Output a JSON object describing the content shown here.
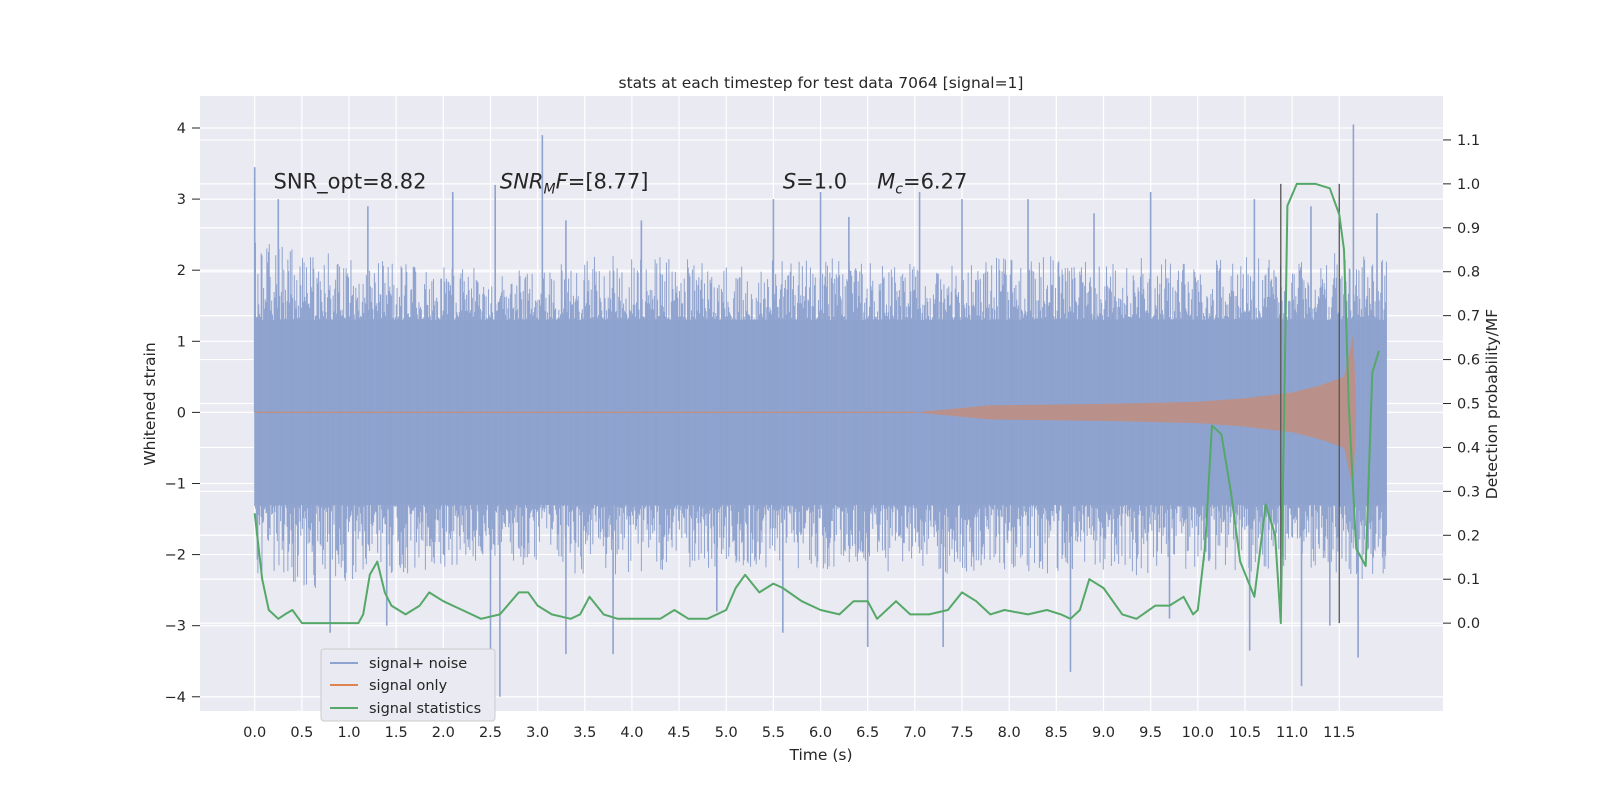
{
  "chart_data": {
    "type": "line",
    "title": "stats at each timestep for test data 7064 [signal=1]",
    "xlabel": "Time (s)",
    "ylabel": "Whitened strain",
    "ylabel_right": "Detection probability/MF",
    "xlim": [
      -0.58,
      12.6
    ],
    "ylim": [
      -4.2,
      4.45
    ],
    "ylim_right": [
      -0.2,
      1.2
    ],
    "x_ticks": [
      "0.0",
      "0.5",
      "1.0",
      "1.5",
      "2.0",
      "2.5",
      "3.0",
      "3.5",
      "4.0",
      "4.5",
      "5.0",
      "5.5",
      "6.0",
      "6.5",
      "7.0",
      "7.5",
      "8.0",
      "8.5",
      "9.0",
      "9.5",
      "10.0",
      "10.5",
      "11.0",
      "11.5"
    ],
    "y_ticks": [
      4,
      3,
      2,
      1,
      0,
      -1,
      -2,
      -3,
      -4
    ],
    "y_tick_labels": [
      "4",
      "3",
      "2",
      "1",
      "0",
      "−1",
      "−2",
      "−3",
      "−4"
    ],
    "y_right_ticks": [
      "0.0",
      "0.1",
      "0.2",
      "0.3",
      "0.4",
      "0.5",
      "0.6",
      "0.7",
      "0.8",
      "0.9",
      "1.0",
      "1.1"
    ],
    "grid": true,
    "legend_position": "bottom-left",
    "colors": {
      "background": "#eaeaf2",
      "grid": "#ffffff",
      "noise": "#8fa3cf",
      "signal": "#dd8452",
      "stats": "#55a868",
      "vline": "#555555"
    },
    "annotations": [
      {
        "text": "SNR_opt=8.82",
        "x": 0.2,
        "y": 3.25
      },
      {
        "text_italic": "SNR",
        "text_sub": "M",
        "text_italic2": "F",
        "text_rest": "=[8.77]",
        "x": 2.6,
        "y": 3.25
      },
      {
        "text_italic": "S",
        "text_rest": "=1.0",
        "x": 5.6,
        "y": 3.25
      },
      {
        "text_italic": "M",
        "text_sub": "c",
        "text_rest": "=6.27",
        "x": 6.6,
        "y": 3.25
      }
    ],
    "vlines": [
      10.88,
      11.5
    ],
    "series": [
      {
        "name": "signal+ noise",
        "kind": "band",
        "t_start": 0.0,
        "t_end": 12.0,
        "core_amplitude": 1.3,
        "envelope_upper": [
          2.4,
          2.3,
          2.2,
          2.1,
          2.1,
          2.0,
          2.0,
          2.2,
          2.2,
          2.2,
          2.1,
          2.2,
          2.2,
          2.1,
          2.1,
          2.1,
          2.2,
          2.2,
          2.1,
          2.2,
          2.1,
          2.2,
          2.1,
          2.3,
          2.2
        ],
        "envelope_lower": [
          -2.3,
          -2.5,
          -2.4,
          -2.3,
          -2.2,
          -2.2,
          -2.2,
          -2.3,
          -2.3,
          -2.2,
          -2.2,
          -2.2,
          -2.2,
          -2.3,
          -2.2,
          -2.3,
          -2.2,
          -2.3,
          -2.3,
          -2.3,
          -2.2,
          -2.3,
          -2.2,
          -2.3,
          -2.4
        ],
        "spikes": [
          {
            "x": 0.0,
            "y": 3.45
          },
          {
            "x": 0.25,
            "y": 3.0
          },
          {
            "x": 1.2,
            "y": 2.9
          },
          {
            "x": 2.1,
            "y": 3.1
          },
          {
            "x": 2.55,
            "y": 3.2
          },
          {
            "x": 3.05,
            "y": 3.9
          },
          {
            "x": 3.3,
            "y": 2.7
          },
          {
            "x": 4.1,
            "y": 2.7
          },
          {
            "x": 5.5,
            "y": 3.0
          },
          {
            "x": 6.0,
            "y": 3.1
          },
          {
            "x": 6.3,
            "y": 2.75
          },
          {
            "x": 7.05,
            "y": 3.1
          },
          {
            "x": 7.5,
            "y": 3.0
          },
          {
            "x": 8.2,
            "y": 3.0
          },
          {
            "x": 8.9,
            "y": 2.8
          },
          {
            "x": 9.5,
            "y": 3.1
          },
          {
            "x": 10.6,
            "y": 3.0
          },
          {
            "x": 11.2,
            "y": 2.9
          },
          {
            "x": 11.65,
            "y": 4.05
          },
          {
            "x": 11.9,
            "y": 2.8
          },
          {
            "x": 0.8,
            "y": -3.1
          },
          {
            "x": 1.4,
            "y": -3.0
          },
          {
            "x": 2.6,
            "y": -4.0
          },
          {
            "x": 2.5,
            "y": -3.6
          },
          {
            "x": 3.3,
            "y": -3.4
          },
          {
            "x": 3.8,
            "y": -3.4
          },
          {
            "x": 5.6,
            "y": -3.1
          },
          {
            "x": 6.5,
            "y": -3.3
          },
          {
            "x": 7.3,
            "y": -3.3
          },
          {
            "x": 8.65,
            "y": -3.65
          },
          {
            "x": 10.55,
            "y": -3.35
          },
          {
            "x": 11.1,
            "y": -3.85
          },
          {
            "x": 11.7,
            "y": -3.45
          },
          {
            "x": 11.4,
            "y": -3.0
          },
          {
            "x": 9.7,
            "y": -2.9
          },
          {
            "x": 4.9,
            "y": -2.8
          }
        ]
      },
      {
        "name": "signal only",
        "kind": "chirp",
        "t_start": 7.0,
        "t_end": 11.68,
        "amplitude": [
          [
            7.0,
            0.0
          ],
          [
            7.8,
            0.1
          ],
          [
            9.0,
            0.12
          ],
          [
            10.0,
            0.15
          ],
          [
            10.5,
            0.2
          ],
          [
            11.0,
            0.28
          ],
          [
            11.3,
            0.38
          ],
          [
            11.55,
            0.5
          ],
          [
            11.65,
            1.1
          ],
          [
            11.68,
            0.0
          ]
        ]
      },
      {
        "name": "signal statistics",
        "kind": "line",
        "axis": "right",
        "x": [
          0.0,
          0.08,
          0.15,
          0.25,
          0.32,
          0.4,
          0.5,
          0.6,
          0.8,
          1.0,
          1.1,
          1.15,
          1.22,
          1.3,
          1.38,
          1.45,
          1.6,
          1.75,
          1.85,
          2.0,
          2.2,
          2.4,
          2.6,
          2.8,
          2.9,
          3.0,
          3.15,
          3.35,
          3.45,
          3.55,
          3.7,
          3.85,
          4.1,
          4.3,
          4.45,
          4.6,
          4.8,
          5.0,
          5.1,
          5.2,
          5.35,
          5.5,
          5.6,
          5.8,
          6.0,
          6.2,
          6.35,
          6.5,
          6.6,
          6.7,
          6.8,
          6.95,
          7.15,
          7.35,
          7.5,
          7.65,
          7.8,
          7.95,
          8.2,
          8.4,
          8.55,
          8.65,
          8.75,
          8.85,
          9.0,
          9.2,
          9.35,
          9.55,
          9.7,
          9.85,
          9.95,
          10.0,
          10.08,
          10.15,
          10.25,
          10.35,
          10.45,
          10.6,
          10.72,
          10.82,
          10.88,
          10.95,
          11.05,
          11.25,
          11.4,
          11.5,
          11.55,
          11.6,
          11.68,
          11.78,
          11.85,
          11.92
        ],
        "y": [
          0.25,
          0.1,
          0.03,
          0.01,
          0.02,
          0.03,
          0.0,
          0.0,
          0.0,
          0.0,
          0.0,
          0.02,
          0.11,
          0.14,
          0.07,
          0.04,
          0.02,
          0.04,
          0.07,
          0.05,
          0.03,
          0.01,
          0.02,
          0.07,
          0.07,
          0.04,
          0.02,
          0.01,
          0.02,
          0.06,
          0.02,
          0.01,
          0.01,
          0.01,
          0.03,
          0.01,
          0.01,
          0.03,
          0.08,
          0.11,
          0.07,
          0.09,
          0.08,
          0.05,
          0.03,
          0.02,
          0.05,
          0.05,
          0.01,
          0.03,
          0.05,
          0.02,
          0.02,
          0.03,
          0.07,
          0.05,
          0.02,
          0.03,
          0.02,
          0.03,
          0.02,
          0.01,
          0.03,
          0.1,
          0.08,
          0.02,
          0.01,
          0.04,
          0.04,
          0.06,
          0.02,
          0.03,
          0.18,
          0.45,
          0.43,
          0.3,
          0.14,
          0.06,
          0.27,
          0.2,
          0.0,
          0.95,
          1.0,
          1.0,
          0.99,
          0.93,
          0.85,
          0.5,
          0.17,
          0.13,
          0.57,
          0.62
        ]
      }
    ],
    "legend": [
      "signal+ noise",
      "signal only",
      "signal statistics"
    ]
  }
}
